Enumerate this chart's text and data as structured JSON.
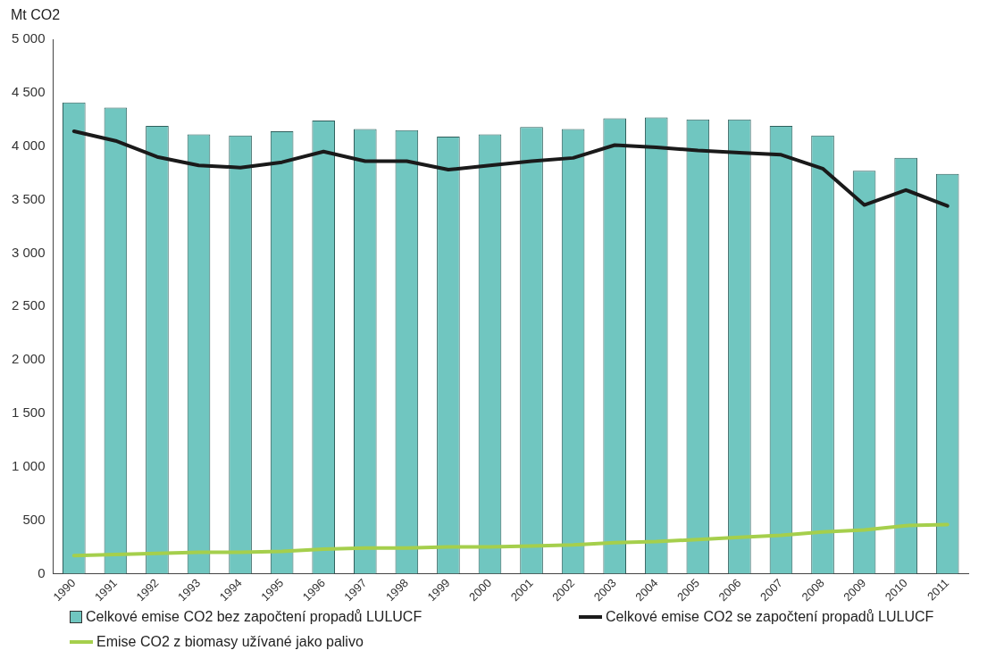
{
  "chart_data": {
    "type": "bar",
    "ylabel": "Mt CO2",
    "categories": [
      "1990",
      "1991",
      "1992",
      "1993",
      "1994",
      "1995",
      "1996",
      "1997",
      "1998",
      "1999",
      "2000",
      "2001",
      "2002",
      "2003",
      "2004",
      "2005",
      "2006",
      "2007",
      "2008",
      "2009",
      "2010",
      "2011"
    ],
    "series": [
      {
        "name": "Celkové emise CO2 bez započtení propadů LULUCF",
        "color": "#70c6c0",
        "values": [
          4410,
          4360,
          4190,
          4110,
          4100,
          4140,
          4240,
          4160,
          4150,
          4090,
          4110,
          4180,
          4160,
          4260,
          4270,
          4250,
          4250,
          4190,
          4100,
          3770,
          3890,
          3740
        ]
      },
      {
        "name": "Celkové emise CO2 se započtení propadů LULUCF",
        "type": "line",
        "color": "#1a1a1a",
        "values": [
          4140,
          4050,
          3900,
          3820,
          3800,
          3850,
          3950,
          3860,
          3860,
          3780,
          3820,
          3860,
          3890,
          4010,
          3990,
          3960,
          3940,
          3920,
          3790,
          3450,
          3590,
          3440
        ]
      },
      {
        "name": "Emise CO2 z biomasy užívané jako palivo",
        "type": "line",
        "color": "#a5cf4c",
        "values": [
          170,
          180,
          190,
          200,
          200,
          210,
          230,
          240,
          240,
          250,
          250,
          260,
          270,
          290,
          300,
          320,
          340,
          360,
          390,
          410,
          450,
          460
        ]
      }
    ],
    "ylim": [
      0,
      5000
    ],
    "yticks": [
      0,
      500,
      {
        "value": 1000,
        "label": "1 000"
      },
      {
        "value": 1500,
        "label": "1 500"
      },
      {
        "value": 2000,
        "label": "2 000"
      },
      {
        "value": 2500,
        "label": "2 500"
      },
      {
        "value": 3000,
        "label": "3 000"
      },
      {
        "value": 3500,
        "label": "3 500"
      },
      {
        "value": 4000,
        "label": "4 000"
      },
      {
        "value": 4500,
        "label": "4 500"
      },
      {
        "value": 5000,
        "label": "5 000"
      }
    ],
    "grid": false,
    "legend": "bottom",
    "marker": "none",
    "line_style": "solid"
  }
}
